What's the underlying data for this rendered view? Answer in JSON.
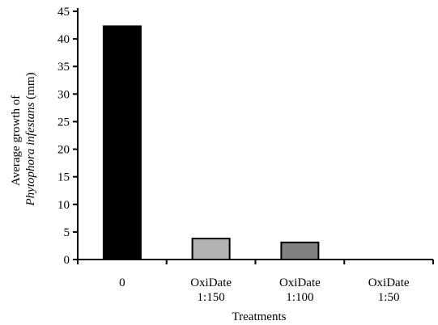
{
  "chart_data": {
    "type": "bar",
    "categories": [
      [
        "0"
      ],
      [
        "OxiDate",
        "1:150"
      ],
      [
        "OxiDate",
        "1:100"
      ],
      [
        "OxiDate",
        "1:50"
      ]
    ],
    "values": [
      42.3,
      3.8,
      3.1,
      0
    ],
    "bar_colors": [
      "#000000",
      "#b3b3b3",
      "#808080",
      "#ffffff"
    ],
    "xlabel": "Treatments",
    "ylabel_line1": "Average growth of",
    "ylabel_line2_italic": "Phytophora infestans",
    "ylabel_line2_suffix": " (mm)",
    "ylim": [
      0,
      45
    ],
    "yticks": [
      0,
      5,
      10,
      15,
      20,
      25,
      30,
      35,
      40,
      45
    ],
    "grid": false
  }
}
